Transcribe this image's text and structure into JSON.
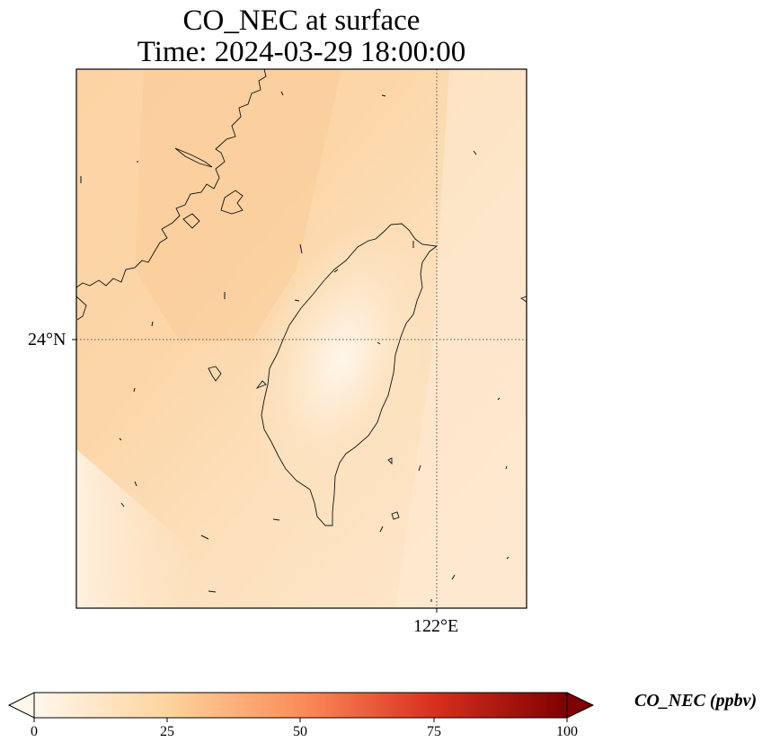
{
  "title": {
    "line1": "CO_NEC at surface",
    "line2": "Time: 2024-03-29 18:00:00"
  },
  "map": {
    "lat_label": "24°N",
    "lon_label": "122°E",
    "gridlines": "dotted",
    "overlay": "wind-vector-arrows",
    "features": [
      "Taiwan coastline",
      "Fujian coastline"
    ]
  },
  "colorbar": {
    "label": "CO_NEC (ppbv)",
    "ticks": [
      "0",
      "25",
      "50",
      "75",
      "100"
    ],
    "min": 0,
    "max": 100,
    "extend": "both",
    "colors": [
      "#fff7ec",
      "#fdd49e",
      "#fc8d59",
      "#d7301f",
      "#7f0000"
    ]
  }
}
